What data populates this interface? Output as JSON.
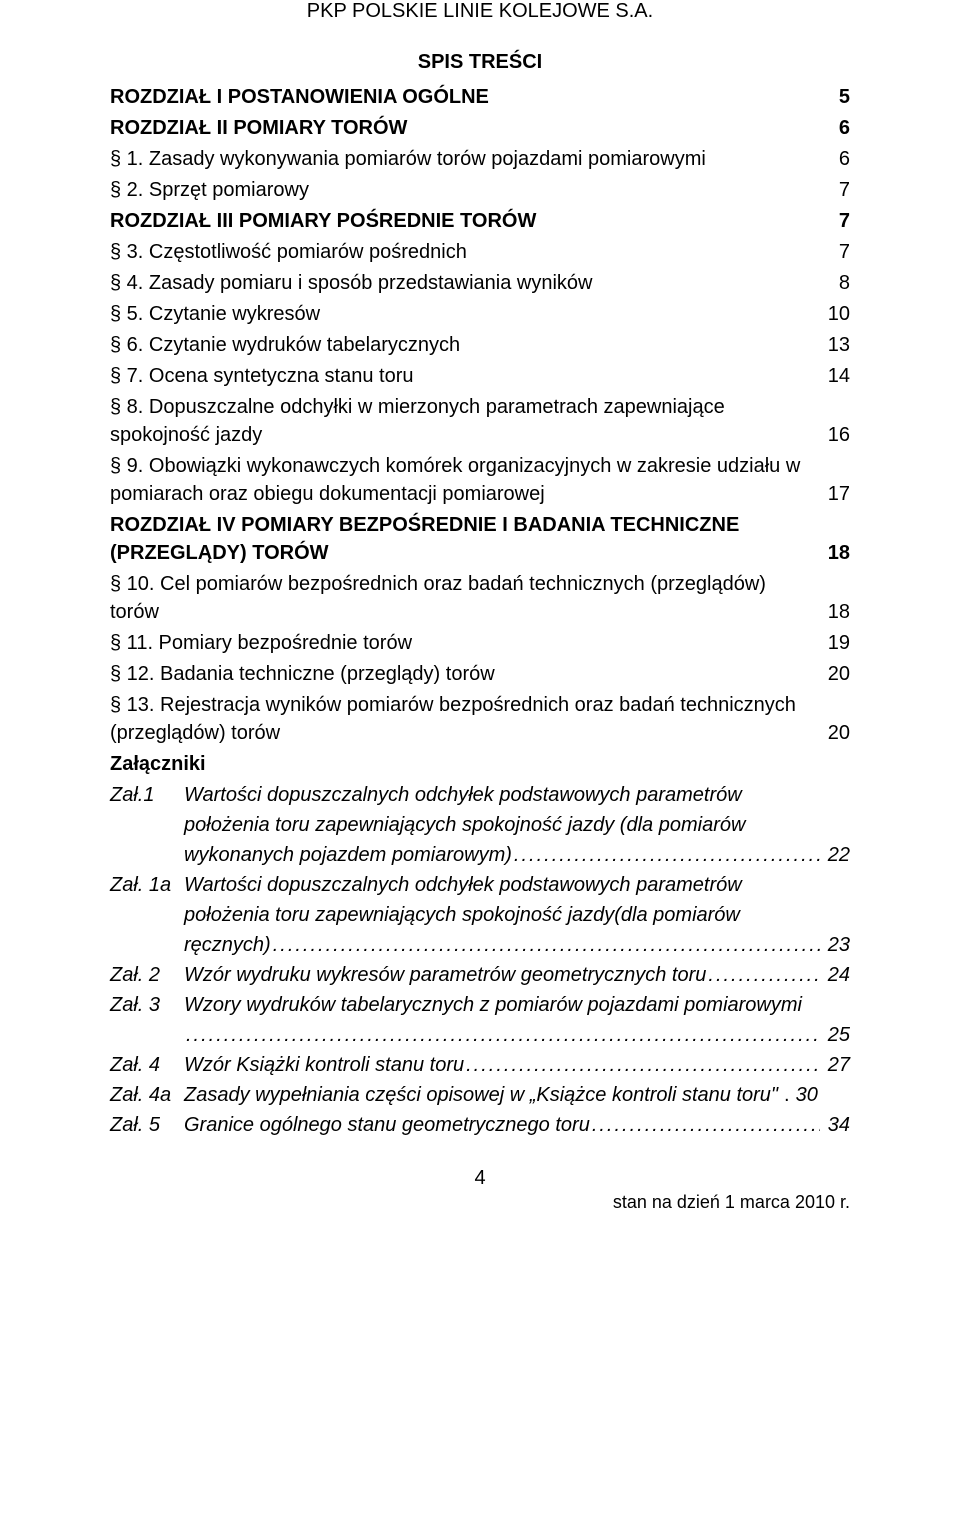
{
  "header": {
    "company": "PKP POLSKIE LINIE KOLEJOWE S.A.",
    "toc_title": "SPIS TREŚCI"
  },
  "toc": {
    "chapter1": {
      "label": "ROZDZIAŁ I  POSTANOWIENIA OGÓLNE",
      "page": "5"
    },
    "chapter2": {
      "label": "ROZDZIAŁ II  POMIARY TORÓW",
      "page": "6"
    },
    "s1": {
      "label": "§ 1.  Zasady wykonywania pomiarów torów pojazdami pomiarowymi",
      "page": "6"
    },
    "s2": {
      "label": "§ 2.  Sprzęt pomiarowy",
      "page": "7"
    },
    "chapter3": {
      "label": "ROZDZIAŁ III  POMIARY POŚREDNIE TORÓW",
      "page": "7"
    },
    "s3": {
      "label": "§ 3.  Częstotliwość pomiarów pośrednich",
      "page": "7"
    },
    "s4": {
      "label": "§ 4.  Zasady pomiaru i sposób przedstawiania wyników",
      "page": "8"
    },
    "s5": {
      "label": "§ 5.  Czytanie wykresów",
      "page": "10"
    },
    "s6": {
      "label": "§ 6.  Czytanie wydruków tabelarycznych",
      "page": "13"
    },
    "s7": {
      "label": "§ 7.  Ocena syntetyczna stanu toru",
      "page": "14"
    },
    "s8": {
      "line1": "§ 8.  Dopuszczalne odchyłki w mierzonych parametrach zapewniające",
      "line2": "spokojność jazdy",
      "page": "16"
    },
    "s9": {
      "line1": "§ 9.  Obowiązki wykonawczych komórek organizacyjnych w zakresie udziału w",
      "line2": "pomiarach oraz obiegu dokumentacji pomiarowej",
      "page": "17"
    },
    "chapter4": {
      "line1": "ROZDZIAŁ IV  POMIARY BEZPOŚREDNIE I BADANIA TECHNICZNE",
      "line2": "(PRZEGLĄDY) TORÓW",
      "page": "18"
    },
    "s10": {
      "line1": "§ 10.  Cel pomiarów bezpośrednich oraz badań technicznych (przeglądów)",
      "line2": "torów",
      "page": "18"
    },
    "s11": {
      "label": "§ 11.  Pomiary bezpośrednie torów",
      "page": "19"
    },
    "s12": {
      "label": "§ 12.  Badania techniczne (przeglądy) torów",
      "page": "20"
    },
    "s13": {
      "line1": "§ 13.  Rejestracja wyników pomiarów bezpośrednich oraz badań technicznych",
      "line2": "(przeglądów) torów",
      "page": "20"
    },
    "attachments_heading": "Załączniki"
  },
  "attachments": {
    "a1": {
      "label": "Zał.1",
      "l1": "Wartości dopuszczalnych odchyłek podstawowych parametrów",
      "l2": "położenia toru zapewniających spokojność jazdy (dla pomiarów",
      "l3": "wykonanych pojazdem pomiarowym)",
      "page": "22"
    },
    "a1a": {
      "label": "Zał. 1a",
      "l1": "Wartości dopuszczalnych odchyłek podstawowych parametrów",
      "l2": "położenia toru zapewniających spokojność jazdy(dla pomiarów",
      "l3": "ręcznych)",
      "page": "23"
    },
    "a2": {
      "label": "Zał. 2",
      "l1": "Wzór wydruku wykresów parametrów geometrycznych toru",
      "page": "24"
    },
    "a3": {
      "label": "Zał. 3",
      "l1": "Wzory wydruków tabelarycznych z pomiarów pojazdami pomiarowymi",
      "page": "25"
    },
    "a4": {
      "label": "Zał. 4",
      "l1": "Wzór Książki  kontroli stanu toru",
      "page": "27"
    },
    "a4a": {
      "label": "Zał. 4a",
      "l1": "Zasady wypełniania części opisowej w „Książce kontroli stanu toru\"",
      "page": "30"
    },
    "a5": {
      "label": "Zał. 5",
      "l1": "Granice ogólnego stanu geometrycznego toru",
      "page": "34"
    }
  },
  "footer": {
    "page_number": "4",
    "date_line": "stan na dzień 1 marca 2010 r."
  }
}
